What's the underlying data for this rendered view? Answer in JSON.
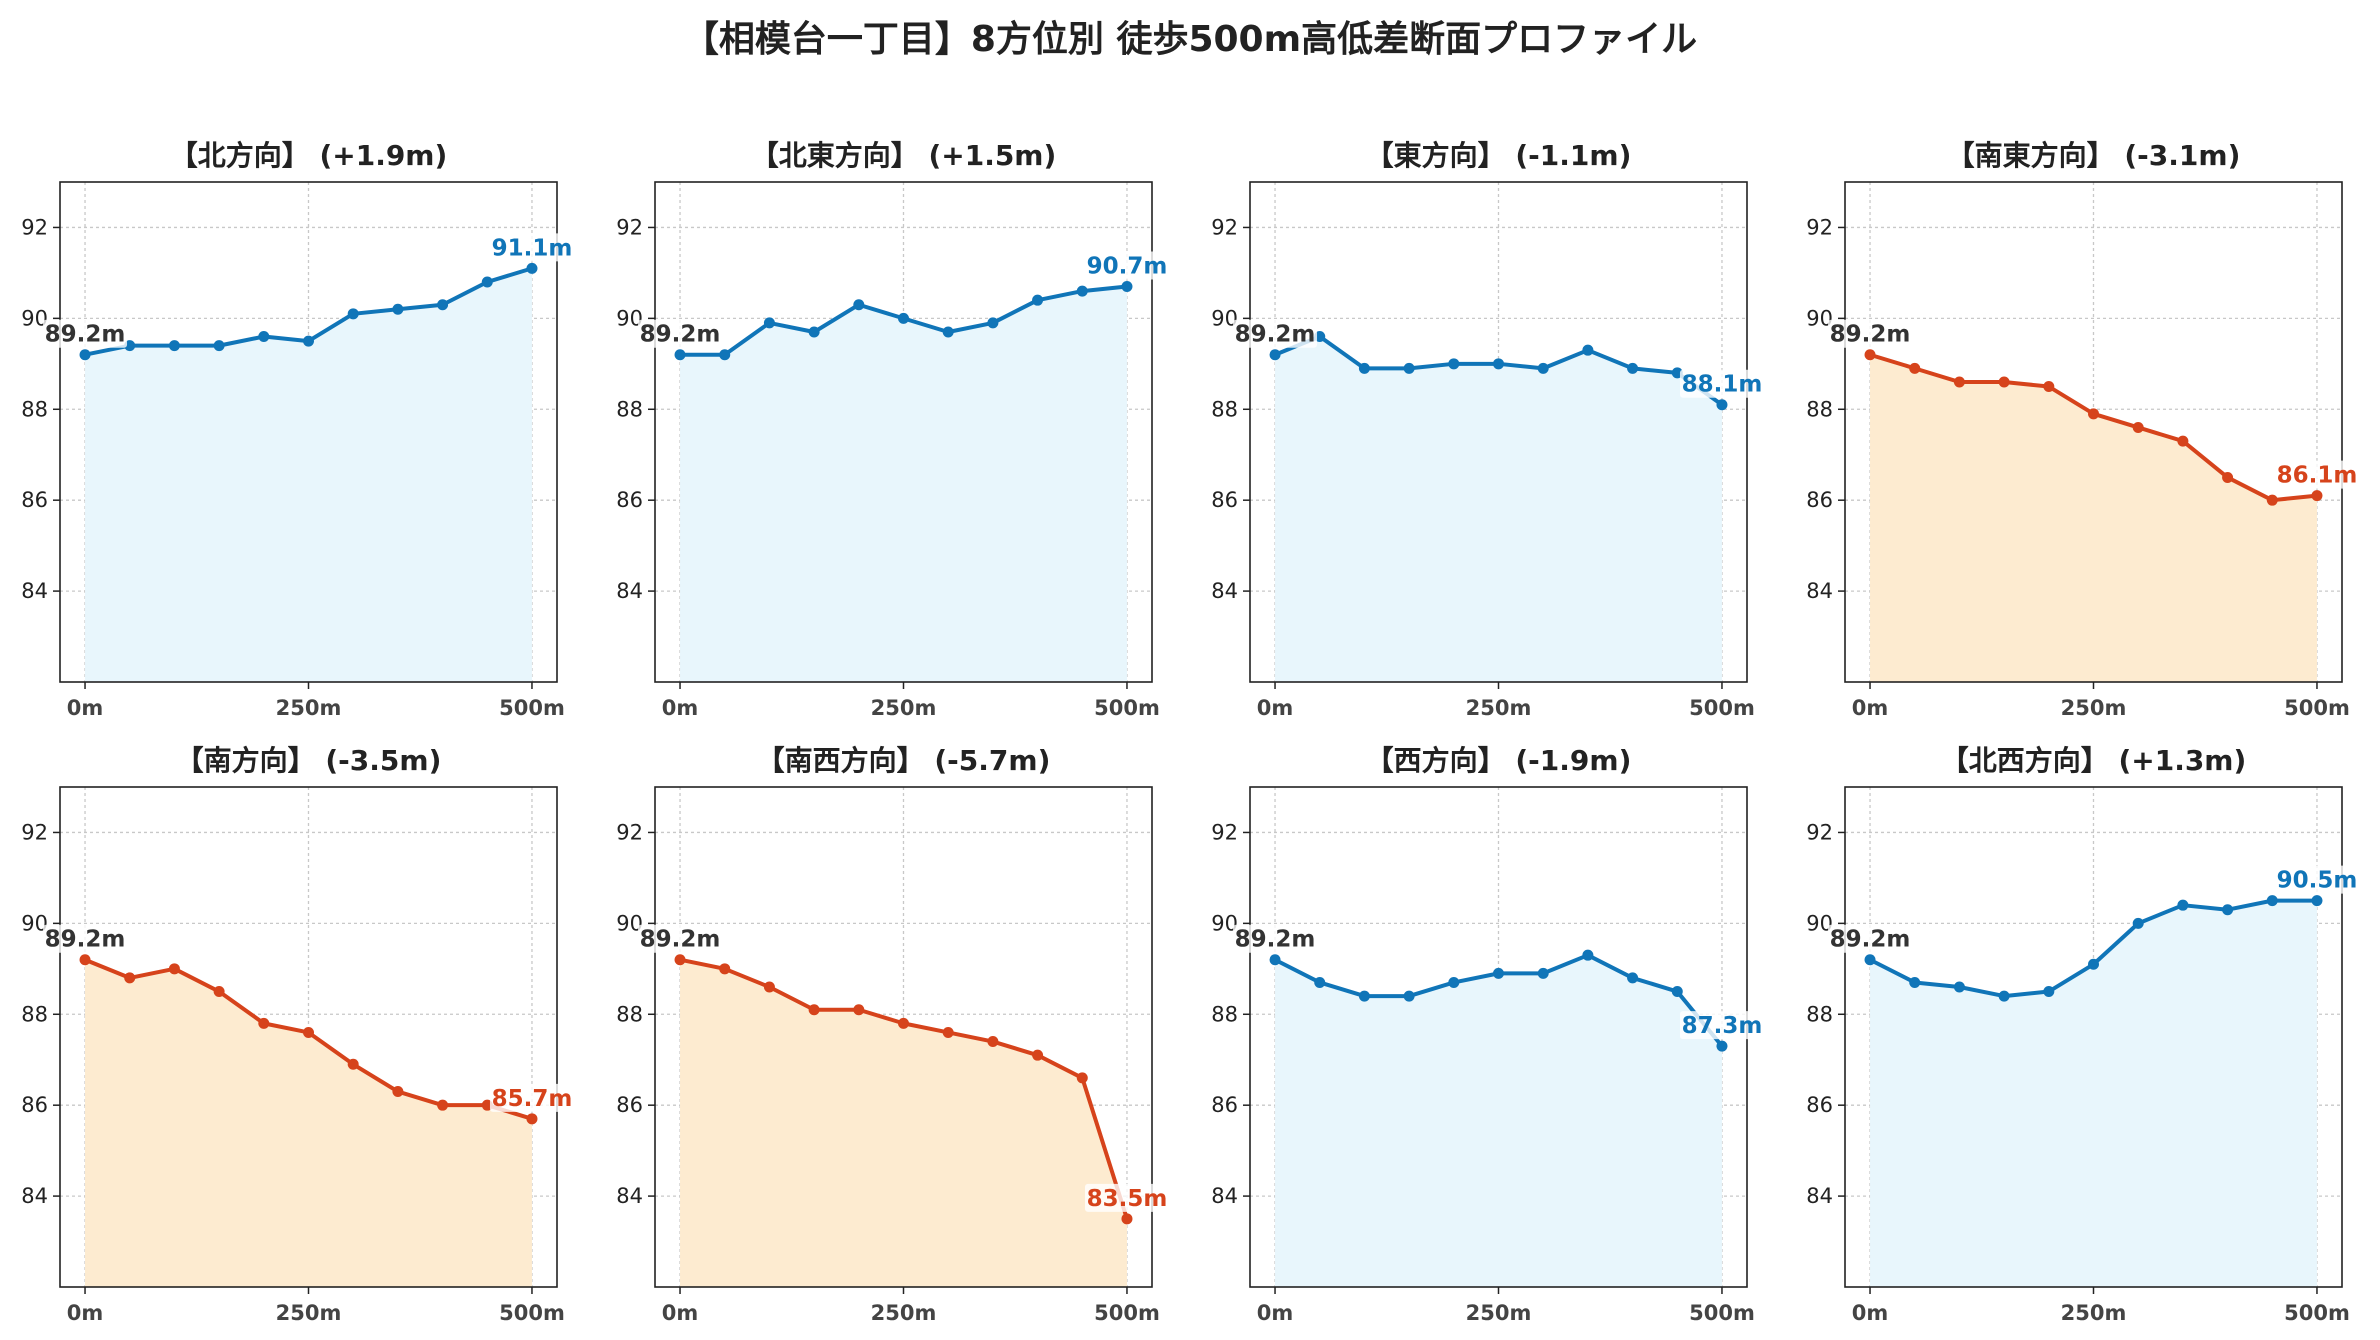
{
  "title": "【相模台一丁目】8方位別 徒歩500m高低差断面プロファイル",
  "colors": {
    "up_line": "#1075b8",
    "up_fill": "#e8f6fc",
    "down_line": "#d6431b",
    "down_fill": "#fdebd0",
    "grid": "#c8c8c8",
    "axis": "#222222",
    "start_label": "#333333"
  },
  "chart_data": [
    {
      "type": "line",
      "title": "【北方向】 (+1.9m)",
      "trend": "up",
      "x": [
        0,
        50,
        100,
        150,
        200,
        250,
        300,
        350,
        400,
        450,
        500
      ],
      "y": [
        89.2,
        89.4,
        89.4,
        89.4,
        89.6,
        89.5,
        90.1,
        90.2,
        90.3,
        90.8,
        91.1
      ],
      "start_label": "89.2m",
      "end_label": "91.1m",
      "x_ticks": [
        "0m",
        "250m",
        "500m"
      ],
      "y_ticks": [
        84,
        86,
        88,
        90,
        92
      ],
      "xlim": [
        -28,
        528
      ],
      "ylim": [
        82,
        93
      ],
      "grid": true
    },
    {
      "type": "line",
      "title": "【北東方向】 (+1.5m)",
      "trend": "up",
      "x": [
        0,
        50,
        100,
        150,
        200,
        250,
        300,
        350,
        400,
        450,
        500
      ],
      "y": [
        89.2,
        89.2,
        89.9,
        89.7,
        90.3,
        90.0,
        89.7,
        89.9,
        90.4,
        90.6,
        90.7
      ],
      "start_label": "89.2m",
      "end_label": "90.7m",
      "x_ticks": [
        "0m",
        "250m",
        "500m"
      ],
      "y_ticks": [
        84,
        86,
        88,
        90,
        92
      ],
      "xlim": [
        -28,
        528
      ],
      "ylim": [
        82,
        93
      ],
      "grid": true
    },
    {
      "type": "line",
      "title": "【東方向】 (-1.1m)",
      "trend": "up",
      "x": [
        0,
        50,
        100,
        150,
        200,
        250,
        300,
        350,
        400,
        450,
        500
      ],
      "y": [
        89.2,
        89.6,
        88.9,
        88.9,
        89.0,
        89.0,
        88.9,
        89.3,
        88.9,
        88.8,
        88.1
      ],
      "start_label": "89.2m",
      "end_label": "88.1m",
      "x_ticks": [
        "0m",
        "250m",
        "500m"
      ],
      "y_ticks": [
        84,
        86,
        88,
        90,
        92
      ],
      "xlim": [
        -28,
        528
      ],
      "ylim": [
        82,
        93
      ],
      "grid": true
    },
    {
      "type": "line",
      "title": "【南東方向】 (-3.1m)",
      "trend": "down",
      "x": [
        0,
        50,
        100,
        150,
        200,
        250,
        300,
        350,
        400,
        450,
        500
      ],
      "y": [
        89.2,
        88.9,
        88.6,
        88.6,
        88.5,
        87.9,
        87.6,
        87.3,
        86.5,
        86.0,
        86.1
      ],
      "start_label": "89.2m",
      "end_label": "86.1m",
      "x_ticks": [
        "0m",
        "250m",
        "500m"
      ],
      "y_ticks": [
        84,
        86,
        88,
        90,
        92
      ],
      "xlim": [
        -28,
        528
      ],
      "ylim": [
        82,
        93
      ],
      "grid": true
    },
    {
      "type": "line",
      "title": "【南方向】 (-3.5m)",
      "trend": "down",
      "x": [
        0,
        50,
        100,
        150,
        200,
        250,
        300,
        350,
        400,
        450,
        500
      ],
      "y": [
        89.2,
        88.8,
        89.0,
        88.5,
        87.8,
        87.6,
        86.9,
        86.3,
        86.0,
        86.0,
        85.7
      ],
      "start_label": "89.2m",
      "end_label": "85.7m",
      "x_ticks": [
        "0m",
        "250m",
        "500m"
      ],
      "y_ticks": [
        84,
        86,
        88,
        90,
        92
      ],
      "xlim": [
        -28,
        528
      ],
      "ylim": [
        82,
        93
      ],
      "grid": true
    },
    {
      "type": "line",
      "title": "【南西方向】 (-5.7m)",
      "trend": "down",
      "x": [
        0,
        50,
        100,
        150,
        200,
        250,
        300,
        350,
        400,
        450,
        500
      ],
      "y": [
        89.2,
        89.0,
        88.6,
        88.1,
        88.1,
        87.8,
        87.6,
        87.4,
        87.1,
        86.6,
        83.5
      ],
      "start_label": "89.2m",
      "end_label": "83.5m",
      "x_ticks": [
        "0m",
        "250m",
        "500m"
      ],
      "y_ticks": [
        84,
        86,
        88,
        90,
        92
      ],
      "xlim": [
        -28,
        528
      ],
      "ylim": [
        82,
        93
      ],
      "grid": true
    },
    {
      "type": "line",
      "title": "【西方向】 (-1.9m)",
      "trend": "up",
      "x": [
        0,
        50,
        100,
        150,
        200,
        250,
        300,
        350,
        400,
        450,
        500
      ],
      "y": [
        89.2,
        88.7,
        88.4,
        88.4,
        88.7,
        88.9,
        88.9,
        89.3,
        88.8,
        88.5,
        87.3
      ],
      "start_label": "89.2m",
      "end_label": "87.3m",
      "x_ticks": [
        "0m",
        "250m",
        "500m"
      ],
      "y_ticks": [
        84,
        86,
        88,
        90,
        92
      ],
      "xlim": [
        -28,
        528
      ],
      "ylim": [
        82,
        93
      ],
      "grid": true
    },
    {
      "type": "line",
      "title": "【北西方向】 (+1.3m)",
      "trend": "up",
      "x": [
        0,
        50,
        100,
        150,
        200,
        250,
        300,
        350,
        400,
        450,
        500
      ],
      "y": [
        89.2,
        88.7,
        88.6,
        88.4,
        88.5,
        89.1,
        90.0,
        90.4,
        90.3,
        90.5,
        90.5
      ],
      "start_label": "89.2m",
      "end_label": "90.5m",
      "x_ticks": [
        "0m",
        "250m",
        "500m"
      ],
      "y_ticks": [
        84,
        86,
        88,
        90,
        92
      ],
      "xlim": [
        -28,
        528
      ],
      "ylim": [
        82,
        93
      ],
      "grid": true
    }
  ]
}
